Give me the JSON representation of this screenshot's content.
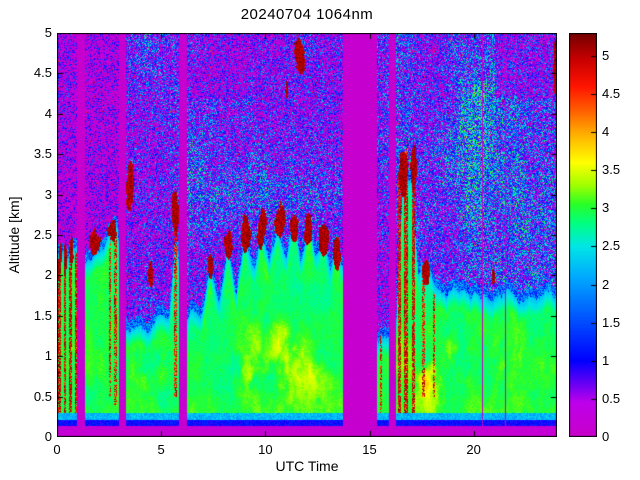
{
  "title": "20240704 1064nm",
  "chart_data": {
    "type": "heatmap",
    "title": "20240704 1064nm",
    "xlabel": "UTC Time",
    "ylabel": "Altitude [km]",
    "x_range": [
      0,
      24
    ],
    "y_range": [
      0,
      5
    ],
    "x_ticks": [
      0,
      5,
      10,
      15,
      20
    ],
    "y_ticks": [
      0,
      0.5,
      1,
      1.5,
      2,
      2.5,
      3,
      3.5,
      4,
      4.5,
      5
    ],
    "grid": false,
    "background_color": "#ffffff",
    "axis_color": "#000000",
    "colorbar": {
      "position": "right",
      "ticks": [
        0,
        0.5,
        1,
        1.5,
        2,
        2.5,
        3,
        3.5,
        4,
        4.5,
        5
      ],
      "vmin": 0,
      "vmax": 5.3
    },
    "colormap_stops": [
      [
        0.0,
        200,
        0,
        200
      ],
      [
        0.45,
        190,
        0,
        235
      ],
      [
        1.0,
        0,
        0,
        255
      ],
      [
        1.6,
        0,
        90,
        255
      ],
      [
        2.1,
        0,
        170,
        255
      ],
      [
        2.5,
        0,
        230,
        230
      ],
      [
        2.8,
        0,
        255,
        130
      ],
      [
        3.05,
        40,
        255,
        40
      ],
      [
        3.3,
        160,
        255,
        0
      ],
      [
        3.6,
        255,
        255,
        0
      ],
      [
        3.95,
        255,
        180,
        0
      ],
      [
        4.3,
        255,
        90,
        0
      ],
      [
        4.6,
        255,
        20,
        0
      ],
      [
        4.95,
        200,
        0,
        0
      ],
      [
        5.3,
        115,
        0,
        0
      ]
    ],
    "surface_layers": {
      "ground_top_km": 0.13,
      "blue_band_top_km": 0.215,
      "cyan_band_top_km": 0.3
    },
    "layer_top": {
      "t": [
        0,
        0.9,
        1.4,
        2.0,
        2.9,
        3.3,
        4.0,
        4.5,
        5.0,
        5.4,
        5.7,
        5.95,
        6.25,
        7.0,
        7.35,
        7.8,
        8.2,
        8.6,
        9.0,
        9.5,
        9.8,
        10.2,
        10.6,
        11.0,
        11.4,
        11.7,
        12.1,
        12.4,
        12.8,
        13.1,
        13.4,
        13.7,
        14.5,
        15.4,
        15.9,
        16.3,
        16.6,
        17.0,
        17.35,
        17.8,
        18.2,
        18.7,
        19.2,
        20.0,
        20.8,
        21.6,
        22.4,
        23.2,
        24.0
      ],
      "km": [
        2.25,
        2.3,
        2.2,
        2.35,
        2.55,
        1.3,
        1.35,
        1.3,
        1.4,
        1.45,
        2.4,
        2.0,
        1.45,
        1.6,
        2.1,
        1.7,
        2.4,
        1.8,
        2.5,
        2.1,
        2.6,
        2.2,
        2.7,
        2.3,
        2.6,
        2.2,
        2.65,
        2.2,
        2.5,
        2.1,
        2.35,
        2.1,
        1.6,
        1.15,
        1.25,
        1.45,
        3.1,
        3.3,
        1.95,
        2.05,
        1.85,
        1.75,
        1.8,
        1.75,
        1.7,
        1.75,
        1.65,
        1.75,
        1.8
      ]
    },
    "gaps": [
      [
        0.96,
        1.34
      ],
      [
        2.98,
        3.3
      ],
      [
        5.88,
        6.22
      ],
      [
        13.72,
        15.36
      ],
      [
        15.92,
        16.26
      ]
    ],
    "thin_gaps": [
      [
        20.38,
        20.46
      ],
      [
        21.5,
        21.57
      ]
    ],
    "clouds": [
      [
        0.02,
        0.28,
        1.9,
        2.5
      ],
      [
        0.3,
        0.52,
        1.85,
        2.45
      ],
      [
        0.56,
        0.82,
        2.0,
        2.5
      ],
      [
        1.5,
        2.15,
        2.15,
        2.62
      ],
      [
        2.35,
        2.95,
        2.3,
        2.82
      ],
      [
        3.3,
        3.78,
        2.7,
        3.5
      ],
      [
        4.35,
        4.62,
        1.85,
        2.2
      ],
      [
        5.5,
        5.88,
        2.4,
        3.25
      ],
      [
        7.2,
        7.52,
        1.95,
        2.3
      ],
      [
        8.0,
        8.45,
        2.1,
        2.6
      ],
      [
        8.8,
        9.3,
        2.25,
        2.78
      ],
      [
        9.55,
        10.1,
        2.3,
        2.88
      ],
      [
        10.35,
        11.0,
        2.35,
        2.92
      ],
      [
        11.15,
        11.62,
        2.4,
        2.82
      ],
      [
        11.85,
        12.3,
        2.35,
        2.85
      ],
      [
        12.55,
        13.1,
        2.2,
        2.68
      ],
      [
        13.2,
        13.65,
        2.05,
        2.5
      ],
      [
        10.9,
        11.15,
        4.05,
        4.5
      ],
      [
        11.3,
        12.0,
        4.4,
        5.02
      ],
      [
        16.4,
        16.85,
        2.9,
        3.62
      ],
      [
        16.95,
        17.3,
        3.05,
        3.68
      ],
      [
        17.45,
        17.95,
        1.85,
        2.22
      ],
      [
        20.85,
        21.05,
        1.8,
        2.1
      ],
      [
        23.82,
        24.02,
        4.05,
        5.02
      ]
    ],
    "streaks": [
      [
        0.1,
        0.14,
        0.3,
        2.35,
        1
      ],
      [
        0.38,
        0.12,
        0.3,
        2.25,
        1
      ],
      [
        0.66,
        0.14,
        0.3,
        2.35,
        1
      ],
      [
        0.9,
        0.1,
        0.3,
        2.1,
        1
      ],
      [
        2.55,
        0.12,
        0.5,
        2.55,
        0
      ],
      [
        2.82,
        0.12,
        0.4,
        2.6,
        0
      ],
      [
        5.68,
        0.14,
        0.5,
        2.9,
        0
      ],
      [
        15.55,
        0.1,
        0.3,
        1.25,
        0
      ],
      [
        16.45,
        0.16,
        0.3,
        3.1,
        1
      ],
      [
        16.75,
        0.2,
        0.3,
        3.4,
        1
      ],
      [
        17.1,
        0.16,
        0.3,
        3.35,
        1
      ],
      [
        17.6,
        0.12,
        0.5,
        2.05,
        0
      ],
      [
        18.1,
        0.1,
        0.5,
        1.65,
        0
      ]
    ],
    "yellow_bumps": [
      {
        "center": 0.5,
        "sigma": 0.9,
        "amp": 0.5
      },
      {
        "center": 4.6,
        "sigma": 1.3,
        "amp": 0.5
      },
      {
        "center": 10.5,
        "sigma": 3.0,
        "amp": 0.95
      },
      {
        "center": 18.2,
        "sigma": 1.5,
        "amp": 1.2
      },
      {
        "center": 21.5,
        "sigma": 2.2,
        "amp": 0.45
      }
    ]
  }
}
